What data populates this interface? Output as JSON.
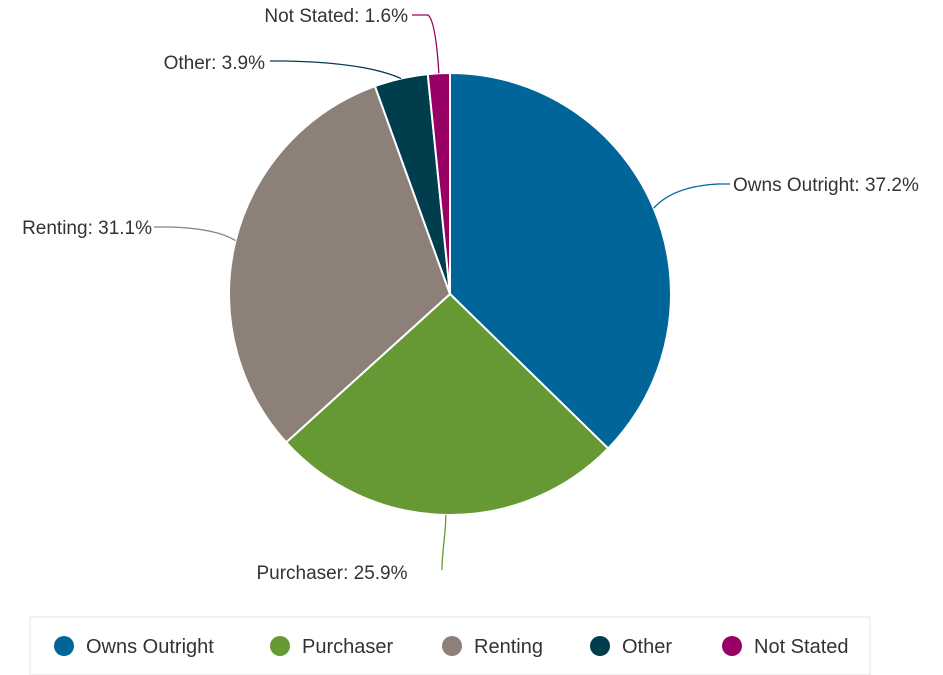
{
  "chart_data": {
    "type": "pie",
    "title": "",
    "legend_position": "bottom",
    "start_angle_deg": 0,
    "direction": "clockwise",
    "slices": [
      {
        "name": "Owns Outright",
        "value": 37.2,
        "label": "Owns Outright: 37.2%",
        "color": "#006699"
      },
      {
        "name": "Purchaser",
        "value": 25.9,
        "label": "Purchaser: 25.9%",
        "color": "#669933"
      },
      {
        "name": "Renting",
        "value": 31.1,
        "label": "Renting: 31.1%",
        "color": "#8c8079"
      },
      {
        "name": "Other",
        "value": 3.9,
        "label": "Other: 3.9%",
        "color": "#003d4d"
      },
      {
        "name": "Not Stated",
        "value": 1.6,
        "label": "Not Stated: 1.6%",
        "color": "#990066"
      }
    ]
  }
}
